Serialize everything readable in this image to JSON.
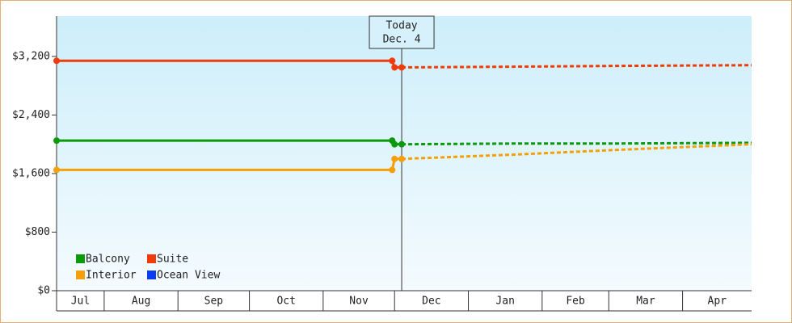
{
  "chart_data": {
    "type": "line",
    "xlim": [
      11,
      303
    ],
    "xticks": [
      31,
      62,
      92,
      123,
      153,
      184,
      215,
      243,
      274
    ],
    "categories": [
      "Jul",
      "Aug",
      "Sep",
      "Oct",
      "Nov",
      "Dec",
      "Jan",
      "Feb",
      "Mar",
      "Apr"
    ],
    "ylim": [
      0,
      3750
    ],
    "yticks": [
      {
        "value": 0,
        "label": "$0"
      },
      {
        "value": 800,
        "label": "$800"
      },
      {
        "value": 1600,
        "label": "$1,600"
      },
      {
        "value": 2400,
        "label": "$2,400"
      },
      {
        "value": 3200,
        "label": "$3,200"
      }
    ],
    "today": {
      "x": 156,
      "label": "Today",
      "date": "Dec. 4"
    },
    "legend": "lower left",
    "series": [
      {
        "name": "Balcony",
        "color": "#0a9a0a",
        "x": [
          11,
          152,
          153,
          156
        ],
        "values": [
          2050,
          2050,
          2000,
          2000
        ],
        "forecast_x": [
          156,
          204,
          244,
          303
        ],
        "forecast_values": [
          2000,
          2010,
          2010,
          2020
        ]
      },
      {
        "name": "Suite",
        "color": "#f03c0a",
        "x": [
          11,
          152,
          153,
          156
        ],
        "values": [
          3140,
          3140,
          3050,
          3050
        ],
        "forecast_x": [
          156,
          204,
          244,
          303
        ],
        "forecast_values": [
          3050,
          3060,
          3070,
          3080
        ]
      },
      {
        "name": "Interior",
        "color": "#f5a00a",
        "x": [
          11,
          152,
          153,
          156
        ],
        "values": [
          1650,
          1650,
          1800,
          1800
        ],
        "forecast_x": [
          156,
          204,
          244,
          303
        ],
        "forecast_values": [
          1800,
          1860,
          1920,
          2000
        ]
      },
      {
        "name": "Ocean View",
        "color": "#0a3cf0",
        "x": [],
        "values": [],
        "forecast_x": [],
        "forecast_values": []
      }
    ]
  }
}
